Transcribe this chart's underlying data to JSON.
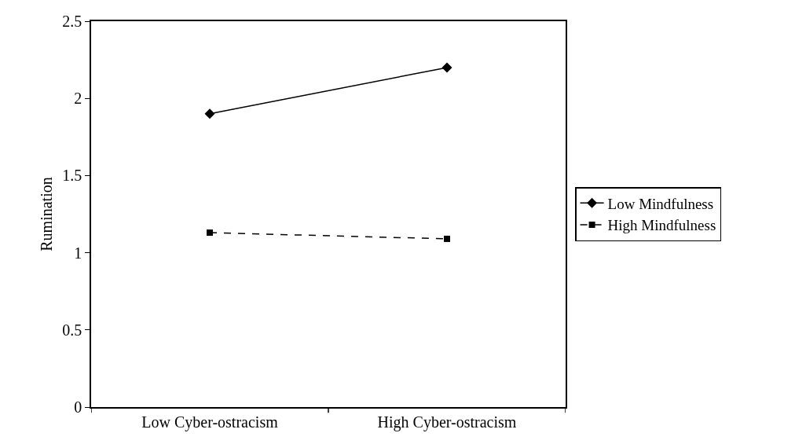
{
  "chart_data": {
    "type": "line",
    "ylabel": "Rumination",
    "categories": [
      "Low Cyber-ostracism",
      "High Cyber-ostracism"
    ],
    "ylim": [
      0,
      2.5
    ],
    "yticks": [
      0,
      0.5,
      1,
      1.5,
      2,
      2.5
    ],
    "grid": false,
    "legend": "right",
    "series": [
      {
        "name": "Low Mindfulness",
        "color": "#000000",
        "values": [
          1.9,
          2.2
        ],
        "marker": "diamond",
        "line_style": "solid"
      },
      {
        "name": "High Mindfulness",
        "color": "#000000",
        "values": [
          1.13,
          1.09
        ],
        "marker": "square",
        "line_style": "dashed"
      }
    ]
  }
}
